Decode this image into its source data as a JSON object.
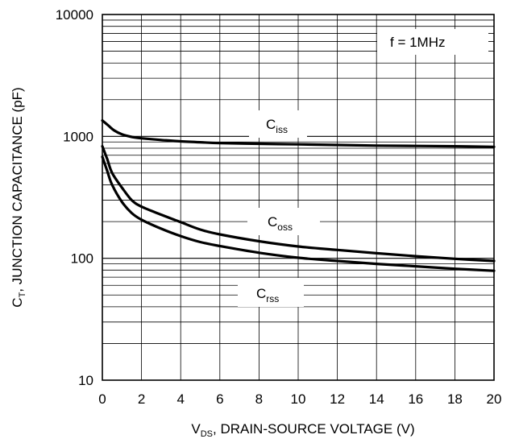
{
  "chart_data": {
    "type": "line",
    "xlabel": {
      "main": "V",
      "sub": "DS",
      "rest": ", DRAIN-SOURCE VOLTAGE (V)"
    },
    "ylabel": {
      "main": "C",
      "sub": "T",
      "rest": ", JUNCTION CAPACITANCE (pF)"
    },
    "xlim": [
      0,
      20
    ],
    "ylim": [
      10,
      10000
    ],
    "yscale": "log",
    "grid": true,
    "x_ticks": [
      "0",
      "2",
      "4",
      "6",
      "8",
      "10",
      "12",
      "14",
      "16",
      "18",
      "20"
    ],
    "y_ticks": [
      "10",
      "100",
      "1000",
      "10000"
    ],
    "annotation": "f = 1MHz",
    "series": [
      {
        "name": "Ciss",
        "label": {
          "main": "C",
          "sub": "iss"
        },
        "x": [
          0,
          0.3,
          0.6,
          1,
          1.5,
          2,
          3,
          4,
          5,
          6,
          8,
          10,
          12,
          14,
          16,
          18,
          20
        ],
        "values": [
          1350,
          1230,
          1120,
          1040,
          990,
          965,
          935,
          910,
          895,
          880,
          870,
          860,
          850,
          840,
          835,
          830,
          820
        ]
      },
      {
        "name": "Coss",
        "label": {
          "main": "C",
          "sub": "oss"
        },
        "x": [
          0,
          0.25,
          0.5,
          1,
          1.5,
          2,
          3,
          4,
          5,
          6,
          8,
          10,
          12,
          14,
          16,
          18,
          20
        ],
        "values": [
          830,
          650,
          500,
          380,
          300,
          265,
          228,
          198,
          172,
          157,
          138,
          125,
          117,
          110,
          104,
          99,
          95
        ]
      },
      {
        "name": "Crss",
        "label": {
          "main": "C",
          "sub": "rss"
        },
        "x": [
          0,
          0.25,
          0.5,
          1,
          1.5,
          2,
          3,
          4,
          5,
          6,
          8,
          10,
          12,
          14,
          16,
          18,
          20
        ],
        "values": [
          680,
          520,
          400,
          290,
          235,
          207,
          175,
          152,
          136,
          126,
          111,
          101,
          95,
          90,
          86,
          82,
          79
        ]
      }
    ]
  }
}
